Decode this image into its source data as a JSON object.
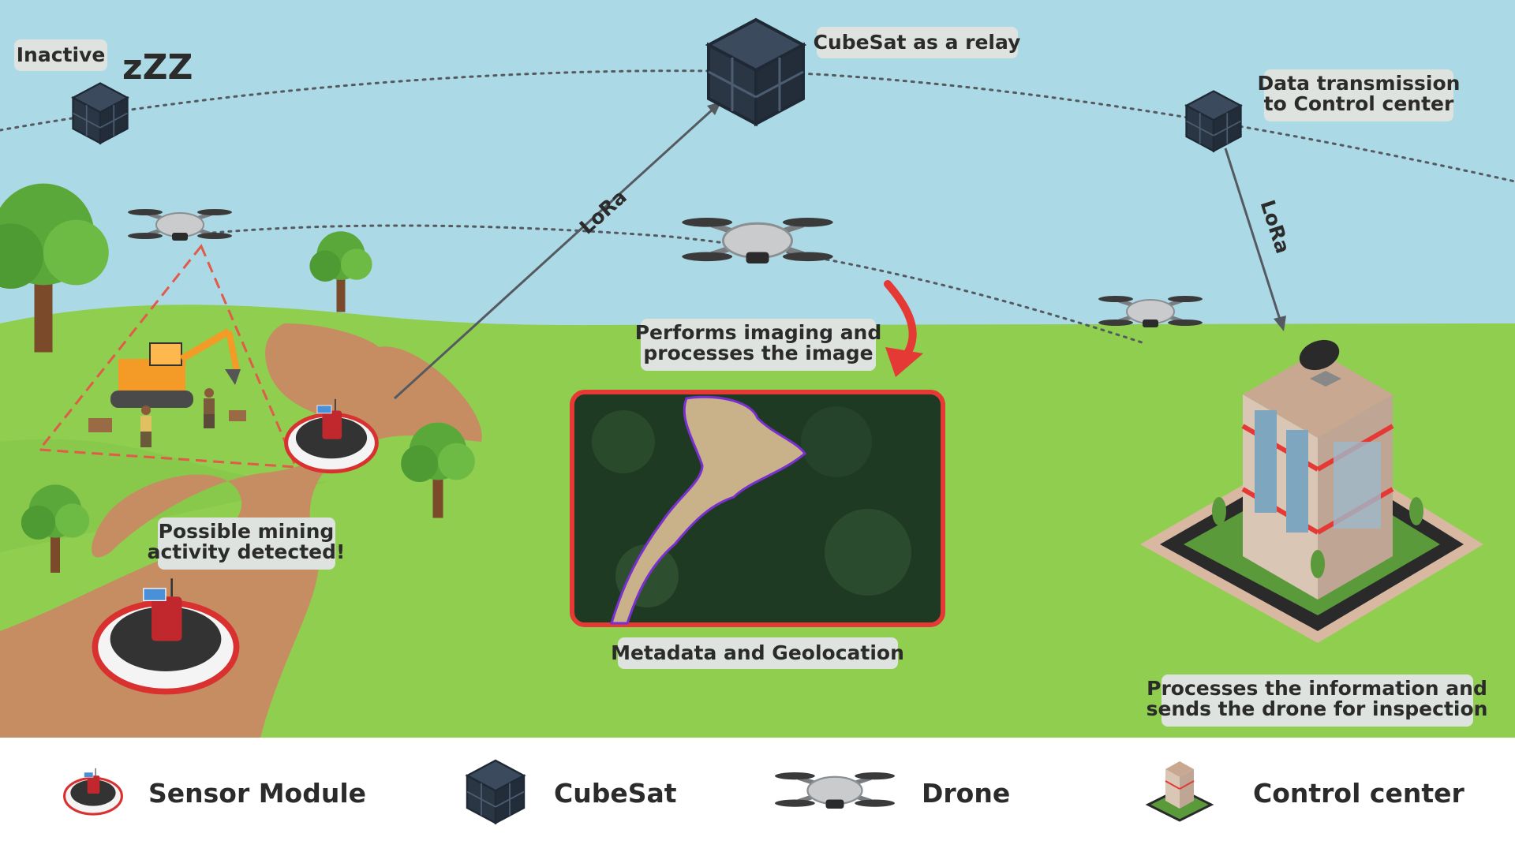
{
  "labels": {
    "inactive": "Inactive",
    "zzz": "zZZ",
    "cubesat_relay": "CubeSat as a relay",
    "data_tx_line1": "Data transmission",
    "data_tx_line2": "to Control center",
    "lora_left": "LoRa",
    "lora_right": "LoRa",
    "imaging_line1": "Performs imaging and",
    "imaging_line2": "processes the image",
    "mining_line1": "Possible mining",
    "mining_line2": "activity detected!",
    "metadata": "Metadata and Geolocation",
    "processes_line1": "Processes the information and",
    "processes_line2": "sends the drone for inspection"
  },
  "legend": [
    {
      "label": "Sensor Module",
      "icon": "sensor-module-icon"
    },
    {
      "label": "CubeSat",
      "icon": "cubesat-icon"
    },
    {
      "label": "Drone",
      "icon": "drone-icon"
    },
    {
      "label": "Control center",
      "icon": "control-center-icon"
    }
  ],
  "colors": {
    "sky": "#acd9e6",
    "grass": "#8fce4f",
    "path": "#c68d63",
    "accent_red": "#e53935",
    "cubesat": "#2d3a4a",
    "label_bg": "#dfe3df"
  }
}
